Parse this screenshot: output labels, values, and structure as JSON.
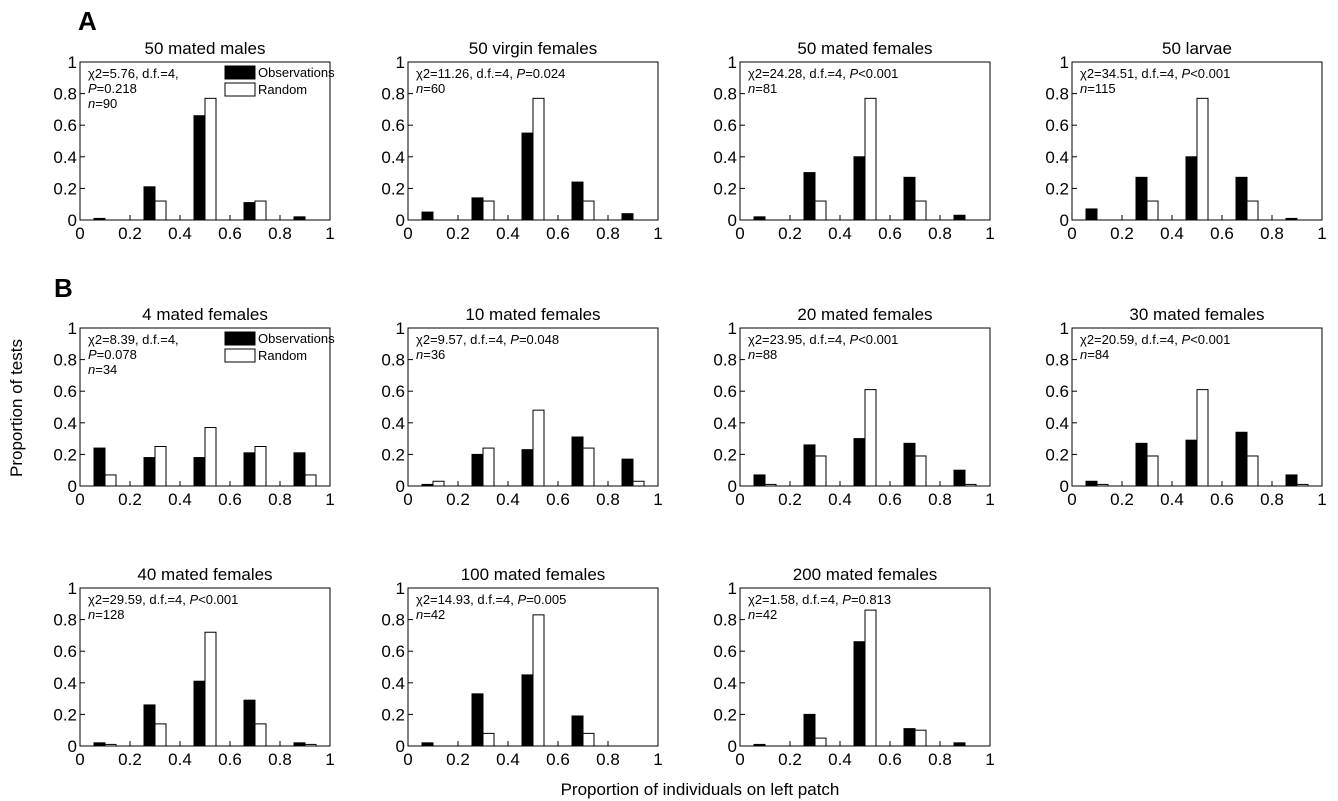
{
  "figure": {
    "panel_labels": [
      "A",
      "B"
    ],
    "ylabel": "Proportion of tests",
    "xlabel": "Proportion of individuals on left patch",
    "legend": {
      "observations": "Observations",
      "random": "Random"
    },
    "colors": {
      "observations": "#000000",
      "random": "#ffffff",
      "edge": "#000000"
    }
  },
  "chart_data": [
    {
      "type": "bar",
      "title": "50 mated males",
      "stat_line1": "χ2=5.76, d.f.=4,",
      "stat_line2": "P=0.218",
      "stat_line3": "n=90",
      "x": [
        0.1,
        0.3,
        0.5,
        0.7,
        0.9
      ],
      "series": [
        {
          "name": "Observations",
          "values": [
            0.01,
            0.21,
            0.66,
            0.11,
            0.02
          ]
        },
        {
          "name": "Random",
          "values": [
            0.0,
            0.12,
            0.77,
            0.12,
            0.0
          ]
        }
      ],
      "xlim": [
        0,
        1
      ],
      "ylim": [
        0,
        1
      ],
      "xticks": [
        "0",
        "0.2",
        "0.4",
        "0.6",
        "0.8",
        "1"
      ],
      "yticks": [
        "0",
        "0.2",
        "0.4",
        "0.6",
        "0.8",
        "1"
      ]
    },
    {
      "type": "bar",
      "title": "50 virgin females",
      "stat_line1": "χ2=11.26, d.f.=4, P=0.024",
      "stat_line2": "n=60",
      "x": [
        0.1,
        0.3,
        0.5,
        0.7,
        0.9
      ],
      "series": [
        {
          "name": "Observations",
          "values": [
            0.05,
            0.14,
            0.55,
            0.24,
            0.04
          ]
        },
        {
          "name": "Random",
          "values": [
            0.0,
            0.12,
            0.77,
            0.12,
            0.0
          ]
        }
      ],
      "xlim": [
        0,
        1
      ],
      "ylim": [
        0,
        1
      ],
      "xticks": [
        "0",
        "0.2",
        "0.4",
        "0.6",
        "0.8",
        "1"
      ],
      "yticks": [
        "0",
        "0.2",
        "0.4",
        "0.6",
        "0.8",
        "1"
      ]
    },
    {
      "type": "bar",
      "title": "50 mated females",
      "stat_line1": "χ2=24.28, d.f.=4, P<0.001",
      "stat_line2": "n=81",
      "x": [
        0.1,
        0.3,
        0.5,
        0.7,
        0.9
      ],
      "series": [
        {
          "name": "Observations",
          "values": [
            0.02,
            0.3,
            0.4,
            0.27,
            0.03
          ]
        },
        {
          "name": "Random",
          "values": [
            0.0,
            0.12,
            0.77,
            0.12,
            0.0
          ]
        }
      ],
      "xlim": [
        0,
        1
      ],
      "ylim": [
        0,
        1
      ],
      "xticks": [
        "0",
        "0.2",
        "0.4",
        "0.6",
        "0.8",
        "1"
      ],
      "yticks": [
        "0",
        "0.2",
        "0.4",
        "0.6",
        "0.8",
        "1"
      ]
    },
    {
      "type": "bar",
      "title": "50 larvae",
      "stat_line1": "χ2=34.51, d.f.=4, P<0.001",
      "stat_line2": "n=115",
      "x": [
        0.1,
        0.3,
        0.5,
        0.7,
        0.9
      ],
      "series": [
        {
          "name": "Observations",
          "values": [
            0.07,
            0.27,
            0.4,
            0.27,
            0.01
          ]
        },
        {
          "name": "Random",
          "values": [
            0.0,
            0.12,
            0.77,
            0.12,
            0.0
          ]
        }
      ],
      "xlim": [
        0,
        1
      ],
      "ylim": [
        0,
        1
      ],
      "xticks": [
        "0",
        "0.2",
        "0.4",
        "0.6",
        "0.8",
        "1"
      ],
      "yticks": [
        "0",
        "0.2",
        "0.4",
        "0.6",
        "0.8",
        "1"
      ]
    },
    {
      "type": "bar",
      "title": "4 mated females",
      "stat_line1": "χ2=8.39, d.f.=4,",
      "stat_line2": "P=0.078",
      "stat_line3": "n=34",
      "x": [
        0.1,
        0.3,
        0.5,
        0.7,
        0.9
      ],
      "series": [
        {
          "name": "Observations",
          "values": [
            0.24,
            0.18,
            0.18,
            0.21,
            0.21
          ]
        },
        {
          "name": "Random",
          "values": [
            0.07,
            0.25,
            0.37,
            0.25,
            0.07
          ]
        }
      ],
      "xlim": [
        0,
        1
      ],
      "ylim": [
        0,
        1
      ],
      "xticks": [
        "0",
        "0.2",
        "0.4",
        "0.6",
        "0.8",
        "1"
      ],
      "yticks": [
        "0",
        "0.2",
        "0.4",
        "0.6",
        "0.8",
        "1"
      ]
    },
    {
      "type": "bar",
      "title": "10 mated females",
      "stat_line1": "χ2=9.57, d.f.=4, P=0.048",
      "stat_line2": "n=36",
      "x": [
        0.1,
        0.3,
        0.5,
        0.7,
        0.9
      ],
      "series": [
        {
          "name": "Observations",
          "values": [
            0.01,
            0.2,
            0.23,
            0.31,
            0.17
          ]
        },
        {
          "name": "Random",
          "values": [
            0.03,
            0.24,
            0.48,
            0.24,
            0.03
          ]
        }
      ],
      "xlim": [
        0,
        1
      ],
      "ylim": [
        0,
        1
      ],
      "xticks": [
        "0",
        "0.2",
        "0.4",
        "0.6",
        "0.8",
        "1"
      ],
      "yticks": [
        "0",
        "0.2",
        "0.4",
        "0.6",
        "0.8",
        "1"
      ]
    },
    {
      "type": "bar",
      "title": "20 mated females",
      "stat_line1": "χ2=23.95, d.f.=4, P<0.001",
      "stat_line2": "n=88",
      "x": [
        0.1,
        0.3,
        0.5,
        0.7,
        0.9
      ],
      "series": [
        {
          "name": "Observations",
          "values": [
            0.07,
            0.26,
            0.3,
            0.27,
            0.1
          ]
        },
        {
          "name": "Random",
          "values": [
            0.01,
            0.19,
            0.61,
            0.19,
            0.01
          ]
        }
      ],
      "xlim": [
        0,
        1
      ],
      "ylim": [
        0,
        1
      ],
      "xticks": [
        "0",
        "0.2",
        "0.4",
        "0.6",
        "0.8",
        "1"
      ],
      "yticks": [
        "0",
        "0.2",
        "0.4",
        "0.6",
        "0.8",
        "1"
      ]
    },
    {
      "type": "bar",
      "title": "30 mated females",
      "stat_line1": "χ2=20.59, d.f.=4, P<0.001",
      "stat_line2": "n=84",
      "x": [
        0.1,
        0.3,
        0.5,
        0.7,
        0.9
      ],
      "series": [
        {
          "name": "Observations",
          "values": [
            0.03,
            0.27,
            0.29,
            0.34,
            0.07
          ]
        },
        {
          "name": "Random",
          "values": [
            0.01,
            0.19,
            0.61,
            0.19,
            0.01
          ]
        }
      ],
      "xlim": [
        0,
        1
      ],
      "ylim": [
        0,
        1
      ],
      "xticks": [
        "0",
        "0.2",
        "0.4",
        "0.6",
        "0.8",
        "1"
      ],
      "yticks": [
        "0",
        "0.2",
        "0.4",
        "0.6",
        "0.8",
        "1"
      ]
    },
    {
      "type": "bar",
      "title": "40 mated females",
      "stat_line1": "χ2=29.59, d.f.=4, P<0.001",
      "stat_line2": "n=128",
      "x": [
        0.1,
        0.3,
        0.5,
        0.7,
        0.9
      ],
      "series": [
        {
          "name": "Observations",
          "values": [
            0.02,
            0.26,
            0.41,
            0.29,
            0.02
          ]
        },
        {
          "name": "Random",
          "values": [
            0.01,
            0.14,
            0.72,
            0.14,
            0.01
          ]
        }
      ],
      "xlim": [
        0,
        1
      ],
      "ylim": [
        0,
        1
      ],
      "xticks": [
        "0",
        "0.2",
        "0.4",
        "0.6",
        "0.8",
        "1"
      ],
      "yticks": [
        "0",
        "0.2",
        "0.4",
        "0.6",
        "0.8",
        "1"
      ]
    },
    {
      "type": "bar",
      "title": "100 mated females",
      "stat_line1": "χ2=14.93, d.f.=4, P=0.005",
      "stat_line2": "n=42",
      "x": [
        0.1,
        0.3,
        0.5,
        0.7,
        0.9
      ],
      "series": [
        {
          "name": "Observations",
          "values": [
            0.02,
            0.33,
            0.45,
            0.19,
            0.0
          ]
        },
        {
          "name": "Random",
          "values": [
            0.0,
            0.08,
            0.83,
            0.08,
            0.0
          ]
        }
      ],
      "xlim": [
        0,
        1
      ],
      "ylim": [
        0,
        1
      ],
      "xticks": [
        "0",
        "0.2",
        "0.4",
        "0.6",
        "0.8",
        "1"
      ],
      "yticks": [
        "0",
        "0.2",
        "0.4",
        "0.6",
        "0.8",
        "1"
      ]
    },
    {
      "type": "bar",
      "title": "200 mated females",
      "stat_line1": "χ2=1.58, d.f.=4, P=0.813",
      "stat_line2": "n=42",
      "x": [
        0.1,
        0.3,
        0.5,
        0.7,
        0.9
      ],
      "series": [
        {
          "name": "Observations",
          "values": [
            0.01,
            0.2,
            0.66,
            0.11,
            0.02
          ]
        },
        {
          "name": "Random",
          "values": [
            0.0,
            0.05,
            0.86,
            0.1,
            0.0
          ]
        }
      ],
      "xlim": [
        0,
        1
      ],
      "ylim": [
        0,
        1
      ],
      "xticks": [
        "0",
        "0.2",
        "0.4",
        "0.6",
        "0.8",
        "1"
      ],
      "yticks": [
        "0",
        "0.2",
        "0.4",
        "0.6",
        "0.8",
        "1"
      ]
    }
  ]
}
